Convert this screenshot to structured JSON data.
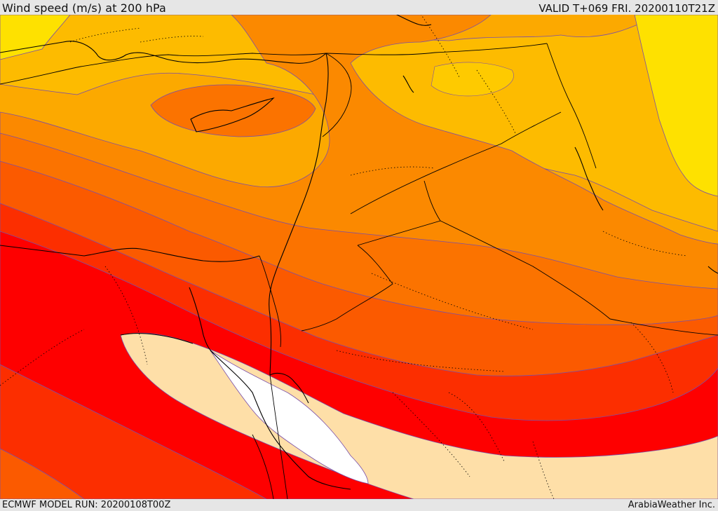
{
  "header": {
    "title": "Wind speed (m/s) at 200 hPa",
    "valid_time": "VALID T+069 FRI. 20200110T21Z"
  },
  "footer": {
    "model_run": "ECMWF MODEL RUN: 20200108T00Z",
    "credit": "ArabiaWeather Inc."
  },
  "colors": {
    "palest": "#fedfa8",
    "yellow": "#fee100",
    "light_orange": "#fdbb00",
    "orange_1": "#fca900",
    "orange_2": "#fb8900",
    "orange_3": "#fb7300",
    "red_orange": "#fb5a00",
    "red_1": "#fc2e00",
    "red_2": "#fe0000",
    "jet_core": "#ffffff",
    "contour": "#7b4fa8",
    "coast": "#000000"
  }
}
